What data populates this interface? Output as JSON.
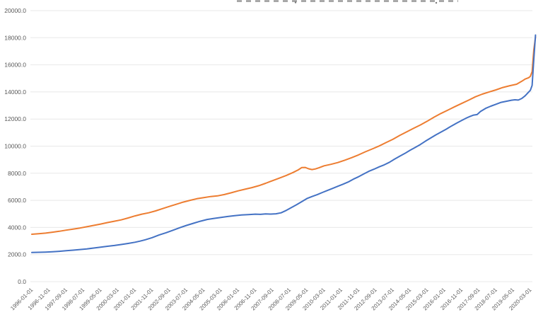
{
  "page": {
    "background": "#ffffff",
    "note_title_state": "title clipped off at top edge of screenshot (illegible fragments only)"
  },
  "chart_data": {
    "type": "line",
    "title": "",
    "xlabel": "",
    "ylabel": "",
    "legend": "none",
    "grid": "horizontal-only",
    "gridline_color": "#e8e8e8",
    "axis_label_color": "#595959",
    "ylim": [
      0,
      20000
    ],
    "y_ticks": [
      0,
      2000,
      4000,
      6000,
      8000,
      10000,
      12000,
      14000,
      16000,
      18000,
      20000
    ],
    "y_tick_decimals": 1,
    "x_unit": "months since 1996-01",
    "x_range_months": [
      0,
      293
    ],
    "months_per_x_tick": 10,
    "x_tick_labels": [
      "1996-01-01",
      "1996-11-01",
      "1997-09-01",
      "1998-07-01",
      "1999-05-01",
      "2000-03-01",
      "2001-01-01",
      "2001-11-01",
      "2002-09-01",
      "2003-07-01",
      "2004-05-01",
      "2005-03-01",
      "2006-01-01",
      "2006-11-01",
      "2007-09-01",
      "2008-07-01",
      "2009-05-01",
      "2010-03-01",
      "2011-01-01",
      "2011-11-01",
      "2012-09-01",
      "2013-07-01",
      "2014-05-01",
      "2015-03-01",
      "2016-01-01",
      "2016-11-01",
      "2017-09-01",
      "2018-07-01",
      "2019-05-01",
      "2020-03-01"
    ],
    "series": [
      {
        "name": "orange-series",
        "color": "#ed7d31",
        "points": [
          [
            0,
            3500
          ],
          [
            4,
            3540
          ],
          [
            8,
            3580
          ],
          [
            12,
            3650
          ],
          [
            16,
            3720
          ],
          [
            20,
            3800
          ],
          [
            24,
            3880
          ],
          [
            28,
            3960
          ],
          [
            32,
            4050
          ],
          [
            36,
            4150
          ],
          [
            40,
            4250
          ],
          [
            44,
            4360
          ],
          [
            48,
            4460
          ],
          [
            52,
            4560
          ],
          [
            56,
            4700
          ],
          [
            60,
            4850
          ],
          [
            64,
            4980
          ],
          [
            68,
            5080
          ],
          [
            72,
            5220
          ],
          [
            76,
            5390
          ],
          [
            80,
            5550
          ],
          [
            84,
            5710
          ],
          [
            88,
            5870
          ],
          [
            92,
            6000
          ],
          [
            96,
            6120
          ],
          [
            100,
            6200
          ],
          [
            104,
            6280
          ],
          [
            108,
            6330
          ],
          [
            112,
            6430
          ],
          [
            116,
            6560
          ],
          [
            120,
            6700
          ],
          [
            124,
            6820
          ],
          [
            128,
            6940
          ],
          [
            132,
            7080
          ],
          [
            136,
            7260
          ],
          [
            140,
            7450
          ],
          [
            144,
            7640
          ],
          [
            148,
            7840
          ],
          [
            152,
            8060
          ],
          [
            155,
            8250
          ],
          [
            157,
            8420
          ],
          [
            159,
            8430
          ],
          [
            161,
            8330
          ],
          [
            163,
            8270
          ],
          [
            165,
            8320
          ],
          [
            167,
            8400
          ],
          [
            170,
            8550
          ],
          [
            174,
            8660
          ],
          [
            178,
            8790
          ],
          [
            182,
            8960
          ],
          [
            186,
            9150
          ],
          [
            190,
            9350
          ],
          [
            194,
            9580
          ],
          [
            198,
            9790
          ],
          [
            202,
            10010
          ],
          [
            206,
            10260
          ],
          [
            210,
            10500
          ],
          [
            214,
            10790
          ],
          [
            218,
            11050
          ],
          [
            222,
            11310
          ],
          [
            226,
            11560
          ],
          [
            230,
            11840
          ],
          [
            234,
            12140
          ],
          [
            238,
            12410
          ],
          [
            242,
            12660
          ],
          [
            246,
            12910
          ],
          [
            250,
            13150
          ],
          [
            254,
            13390
          ],
          [
            258,
            13640
          ],
          [
            262,
            13840
          ],
          [
            266,
            14000
          ],
          [
            270,
            14150
          ],
          [
            274,
            14330
          ],
          [
            278,
            14460
          ],
          [
            282,
            14570
          ],
          [
            285,
            14790
          ],
          [
            287,
            14950
          ],
          [
            289,
            15050
          ],
          [
            290,
            15150
          ],
          [
            291,
            15500
          ],
          [
            292,
            17100
          ],
          [
            293,
            18050
          ]
        ]
      },
      {
        "name": "blue-series",
        "color": "#4472c4",
        "points": [
          [
            0,
            2150
          ],
          [
            4,
            2165
          ],
          [
            8,
            2185
          ],
          [
            12,
            2210
          ],
          [
            16,
            2240
          ],
          [
            20,
            2280
          ],
          [
            24,
            2325
          ],
          [
            28,
            2370
          ],
          [
            32,
            2420
          ],
          [
            36,
            2480
          ],
          [
            40,
            2550
          ],
          [
            44,
            2610
          ],
          [
            48,
            2670
          ],
          [
            52,
            2740
          ],
          [
            56,
            2820
          ],
          [
            60,
            2910
          ],
          [
            63,
            2990
          ],
          [
            66,
            3090
          ],
          [
            70,
            3250
          ],
          [
            74,
            3440
          ],
          [
            78,
            3610
          ],
          [
            82,
            3790
          ],
          [
            86,
            3980
          ],
          [
            90,
            4150
          ],
          [
            94,
            4310
          ],
          [
            98,
            4460
          ],
          [
            102,
            4590
          ],
          [
            106,
            4670
          ],
          [
            110,
            4740
          ],
          [
            114,
            4810
          ],
          [
            118,
            4870
          ],
          [
            122,
            4920
          ],
          [
            126,
            4950
          ],
          [
            130,
            4980
          ],
          [
            133,
            4965
          ],
          [
            136,
            4995
          ],
          [
            139,
            4985
          ],
          [
            142,
            5010
          ],
          [
            145,
            5080
          ],
          [
            148,
            5260
          ],
          [
            151,
            5470
          ],
          [
            154,
            5680
          ],
          [
            157,
            5900
          ],
          [
            160,
            6130
          ],
          [
            163,
            6280
          ],
          [
            166,
            6420
          ],
          [
            169,
            6580
          ],
          [
            172,
            6730
          ],
          [
            175,
            6880
          ],
          [
            178,
            7040
          ],
          [
            181,
            7190
          ],
          [
            184,
            7350
          ],
          [
            187,
            7560
          ],
          [
            190,
            7740
          ],
          [
            193,
            7940
          ],
          [
            196,
            8140
          ],
          [
            199,
            8300
          ],
          [
            202,
            8470
          ],
          [
            205,
            8620
          ],
          [
            208,
            8810
          ],
          [
            211,
            9040
          ],
          [
            214,
            9260
          ],
          [
            217,
            9460
          ],
          [
            220,
            9690
          ],
          [
            223,
            9900
          ],
          [
            226,
            10120
          ],
          [
            229,
            10370
          ],
          [
            232,
            10600
          ],
          [
            235,
            10830
          ],
          [
            238,
            11040
          ],
          [
            241,
            11250
          ],
          [
            244,
            11480
          ],
          [
            247,
            11690
          ],
          [
            250,
            11890
          ],
          [
            253,
            12090
          ],
          [
            255,
            12200
          ],
          [
            257,
            12290
          ],
          [
            259,
            12330
          ],
          [
            261,
            12560
          ],
          [
            264,
            12790
          ],
          [
            267,
            12950
          ],
          [
            270,
            13090
          ],
          [
            273,
            13230
          ],
          [
            276,
            13310
          ],
          [
            279,
            13390
          ],
          [
            281,
            13420
          ],
          [
            283,
            13400
          ],
          [
            285,
            13520
          ],
          [
            287,
            13720
          ],
          [
            289,
            13990
          ],
          [
            290,
            14120
          ],
          [
            291,
            14480
          ],
          [
            292,
            16400
          ],
          [
            293,
            18200
          ]
        ]
      }
    ]
  }
}
